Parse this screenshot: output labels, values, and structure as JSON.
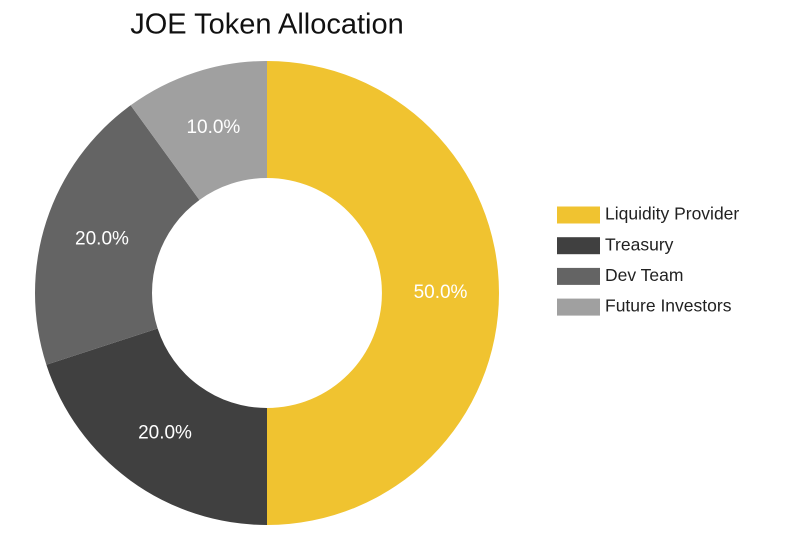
{
  "chart_data": {
    "type": "donut",
    "title": "JOE Token Allocation",
    "categories": [
      "Liquidity Provider",
      "Treasury",
      "Dev Team",
      "Future Investors"
    ],
    "values": [
      50,
      20,
      20,
      10
    ],
    "value_labels": [
      "50.0%",
      "20.0%",
      "20.0%",
      "10.0%"
    ],
    "colors": [
      "#f0c330",
      "#404040",
      "#646464",
      "#a0a0a0"
    ],
    "legend": "right"
  }
}
